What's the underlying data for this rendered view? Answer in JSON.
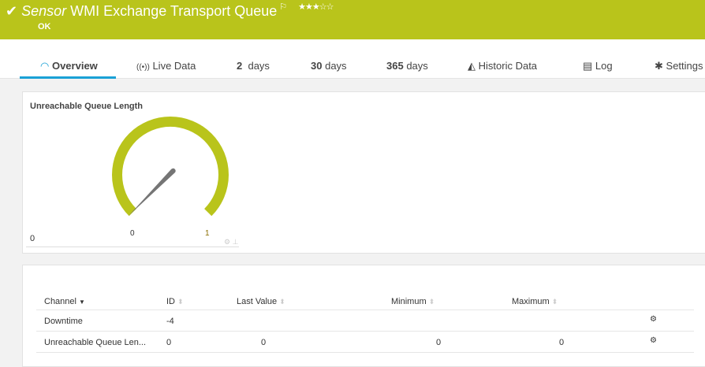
{
  "header": {
    "prefix": "Sensor",
    "title": "WMI Exchange Transport Queue",
    "status": "OK",
    "rating": 3,
    "max_rating": 5,
    "stars": "★★★☆☆",
    "color": "#b9c41b"
  },
  "tabs": [
    {
      "label": "Overview",
      "icon": "gauge-icon",
      "active": true
    },
    {
      "label": "Live Data",
      "icon": "broadcast-icon"
    },
    {
      "num": "2",
      "label": "days"
    },
    {
      "num": "30",
      "label": "days"
    },
    {
      "num": "365",
      "label": "days"
    },
    {
      "label": "Historic Data",
      "icon": "area-chart-icon"
    },
    {
      "label": "Log",
      "icon": "list-icon"
    },
    {
      "label": "Settings",
      "icon": "gear-icon"
    }
  ],
  "gauge": {
    "title": "Unreachable Queue Length",
    "value": "0",
    "min": "0",
    "max": "1",
    "color": "#b9c41b"
  },
  "table": {
    "headers": [
      "Channel",
      "ID",
      "Last Value",
      "Minimum",
      "Maximum"
    ],
    "rows": [
      {
        "channel": "Downtime",
        "id": "-4",
        "last": "",
        "min": "",
        "max": ""
      },
      {
        "channel": "Unreachable Queue Len...",
        "id": "0",
        "last": "0",
        "min": "0",
        "max": "0"
      }
    ]
  }
}
